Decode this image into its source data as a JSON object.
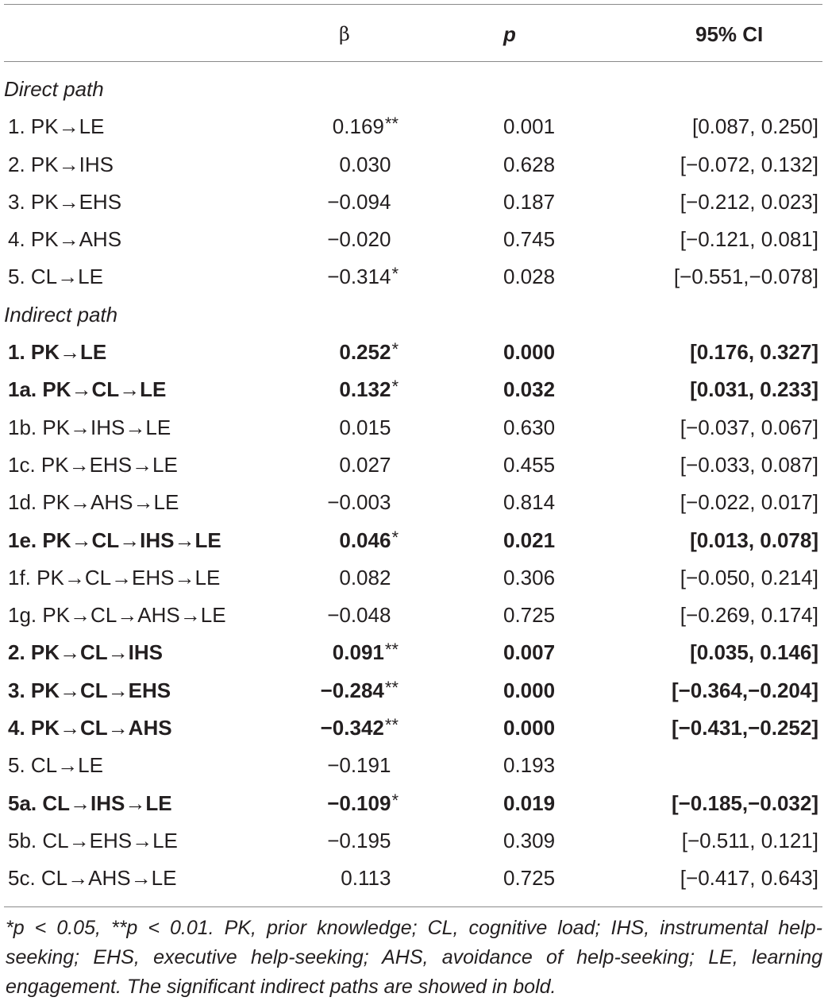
{
  "header": {
    "col_beta": "β",
    "col_p": "p",
    "col_ci": "95% CI"
  },
  "sections": [
    {
      "title": "Direct path",
      "rows": [
        {
          "path": "1. PK→LE",
          "beta": "0.169",
          "sig": "**",
          "p": "0.001",
          "ci": "[0.087, 0.250]",
          "bold": false
        },
        {
          "path": "2. PK→IHS",
          "beta": "0.030",
          "sig": "",
          "p": "0.628",
          "ci": "[−0.072, 0.132]",
          "bold": false
        },
        {
          "path": "3. PK→EHS",
          "beta": "−0.094",
          "sig": "",
          "p": "0.187",
          "ci": "[−0.212, 0.023]",
          "bold": false
        },
        {
          "path": "4. PK→AHS",
          "beta": "−0.020",
          "sig": "",
          "p": "0.745",
          "ci": "[−0.121, 0.081]",
          "bold": false
        },
        {
          "path": "5. CL→LE",
          "beta": "−0.314",
          "sig": "*",
          "p": "0.028",
          "ci": "[−0.551,−0.078]",
          "bold": false
        }
      ]
    },
    {
      "title": "Indirect path",
      "rows": [
        {
          "path": "1. PK→LE",
          "beta": "0.252",
          "sig": "*",
          "p": "0.000",
          "ci": "[0.176, 0.327]",
          "bold": true
        },
        {
          "path": "1a. PK→CL→LE",
          "beta": "0.132",
          "sig": "*",
          "p": "0.032",
          "ci": "[0.031, 0.233]",
          "bold": true
        },
        {
          "path": "1b. PK→IHS→LE",
          "beta": "0.015",
          "sig": "",
          "p": "0.630",
          "ci": "[−0.037, 0.067]",
          "bold": false
        },
        {
          "path": "1c. PK→EHS→LE",
          "beta": "0.027",
          "sig": "",
          "p": "0.455",
          "ci": "[−0.033, 0.087]",
          "bold": false
        },
        {
          "path": "1d. PK→AHS→LE",
          "beta": "−0.003",
          "sig": "",
          "p": "0.814",
          "ci": "[−0.022, 0.017]",
          "bold": false
        },
        {
          "path": "1e. PK→CL→IHS→LE",
          "beta": "0.046",
          "sig": "*",
          "p": "0.021",
          "ci": "[0.013, 0.078]",
          "bold": true
        },
        {
          "path": "1f. PK→CL→EHS→LE",
          "beta": "0.082",
          "sig": "",
          "p": "0.306",
          "ci": "[−0.050, 0.214]",
          "bold": false
        },
        {
          "path": "1g. PK→CL→AHS→LE",
          "beta": "−0.048",
          "sig": "",
          "p": "0.725",
          "ci": "[−0.269, 0.174]",
          "bold": false
        },
        {
          "path": "2. PK→CL→IHS",
          "beta": "0.091",
          "sig": "**",
          "p": "0.007",
          "ci": "[0.035, 0.146]",
          "bold": true
        },
        {
          "path": "3. PK→CL→EHS",
          "beta": "−0.284",
          "sig": "**",
          "p": "0.000",
          "ci": "[−0.364,−0.204]",
          "bold": true
        },
        {
          "path": "4. PK→CL→AHS",
          "beta": "−0.342",
          "sig": "**",
          "p": "0.000",
          "ci": "[−0.431,−0.252]",
          "bold": true
        },
        {
          "path": "5. CL→LE",
          "beta": "−0.191",
          "sig": "",
          "p": "0.193",
          "ci": "",
          "bold": false
        },
        {
          "path": "5a. CL→IHS→LE",
          "beta": "−0.109",
          "sig": "*",
          "p": "0.019",
          "ci": "[−0.185,−0.032]",
          "bold": true
        },
        {
          "path": "5b. CL→EHS→LE",
          "beta": "−0.195",
          "sig": "",
          "p": "0.309",
          "ci": "[−0.511, 0.121]",
          "bold": false
        },
        {
          "path": "5c. CL→AHS→LE",
          "beta": "0.113",
          "sig": "",
          "p": "0.725",
          "ci": "[−0.417, 0.643]",
          "bold": false
        }
      ]
    }
  ],
  "footnote": "*p < 0.05, **p < 0.01. PK, prior knowledge; CL, cognitive load; IHS, instrumental help-seeking; EHS, executive help-seeking; AHS, avoidance of help-seeking; LE, learning engagement. The significant indirect paths are showed in bold."
}
